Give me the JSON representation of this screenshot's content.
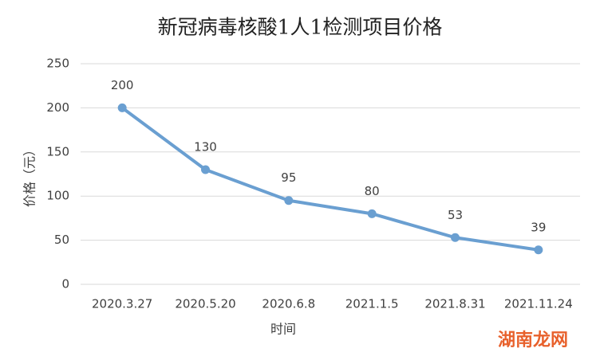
{
  "chart_data": {
    "type": "line",
    "title": "新冠病毒核酸1人1检测项目价格",
    "x_label": "时间",
    "y_label": "价格（元）",
    "categories": [
      "2020.3.27",
      "2020.5.20",
      "2020.6.8",
      "2021.1.5",
      "2021.8.31",
      "2021.11.24"
    ],
    "values": [
      200,
      130,
      95,
      80,
      53,
      39
    ],
    "color": "#6a9fd1",
    "ylim": [
      0,
      250
    ],
    "yticks": [
      0,
      50,
      100,
      150,
      200,
      250
    ],
    "grid": true,
    "data_labels": true
  },
  "watermark": "湖南龙网"
}
